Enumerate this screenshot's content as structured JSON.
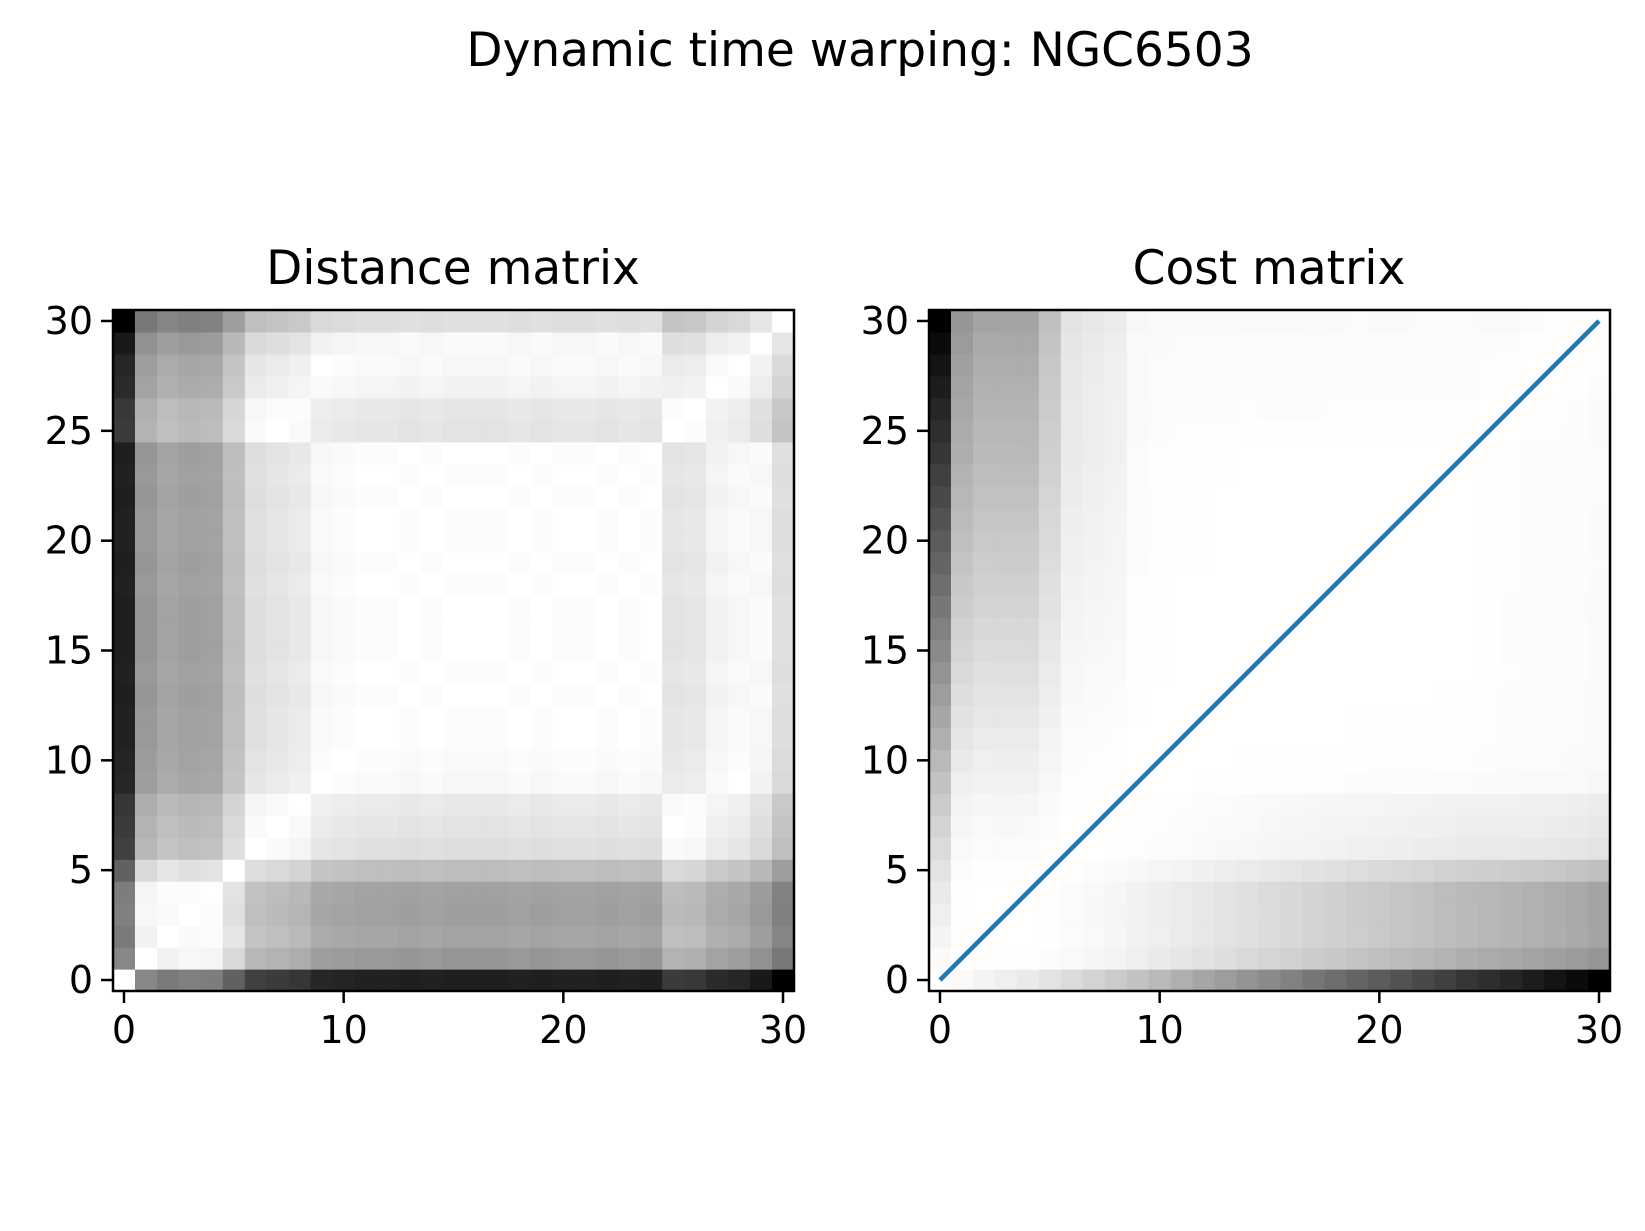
{
  "figure": {
    "suptitle": "Dynamic time warping: NGC6503"
  },
  "chart_data": [
    {
      "type": "heatmap",
      "title": "Distance matrix",
      "xlabel": "",
      "ylabel": "",
      "n": 31,
      "xlim": [
        -0.5,
        30.5
      ],
      "ylim": [
        -0.5,
        30.5
      ],
      "xticks": [
        0,
        10,
        20,
        30
      ],
      "yticks": [
        0,
        5,
        10,
        15,
        20,
        25,
        30
      ],
      "colormap": "gray_r",
      "value_range": [
        0,
        1
      ],
      "grid": false,
      "matrix_model": {
        "description_note": "d[i][j] = |f(i) - f(j)| normalized to max",
        "profile": [
          0.0,
          0.47,
          0.52,
          0.5,
          0.51,
          0.62,
          0.75,
          0.77,
          0.79,
          0.85,
          0.86,
          0.87,
          0.87,
          0.88,
          0.87,
          0.88,
          0.88,
          0.88,
          0.87,
          0.88,
          0.87,
          0.87,
          0.88,
          0.87,
          0.88,
          0.77,
          0.78,
          0.83,
          0.85,
          0.9,
          1.0
        ]
      }
    },
    {
      "type": "heatmap",
      "title": "Cost matrix",
      "xlabel": "",
      "ylabel": "",
      "n": 31,
      "xlim": [
        -0.5,
        30.5
      ],
      "ylim": [
        -0.5,
        30.5
      ],
      "xticks": [
        0,
        10,
        20,
        30
      ],
      "yticks": [
        0,
        5,
        10,
        15,
        20,
        25,
        30
      ],
      "colormap": "gray_r",
      "value_range": "auto",
      "grid": false,
      "warping_path": {
        "x": [
          0,
          1,
          2,
          3,
          4,
          5,
          6,
          7,
          8,
          9,
          10,
          11,
          12,
          13,
          14,
          15,
          16,
          17,
          18,
          19,
          20,
          21,
          22,
          23,
          24,
          25,
          26,
          27,
          28,
          29,
          30
        ],
        "y": [
          0,
          1,
          2,
          3,
          4,
          5,
          6,
          7,
          8,
          9,
          10,
          11,
          12,
          13,
          14,
          15,
          16,
          17,
          18,
          19,
          20,
          21,
          22,
          23,
          24,
          25,
          26,
          27,
          28,
          29,
          30
        ],
        "color": "#1f77b4"
      }
    }
  ]
}
